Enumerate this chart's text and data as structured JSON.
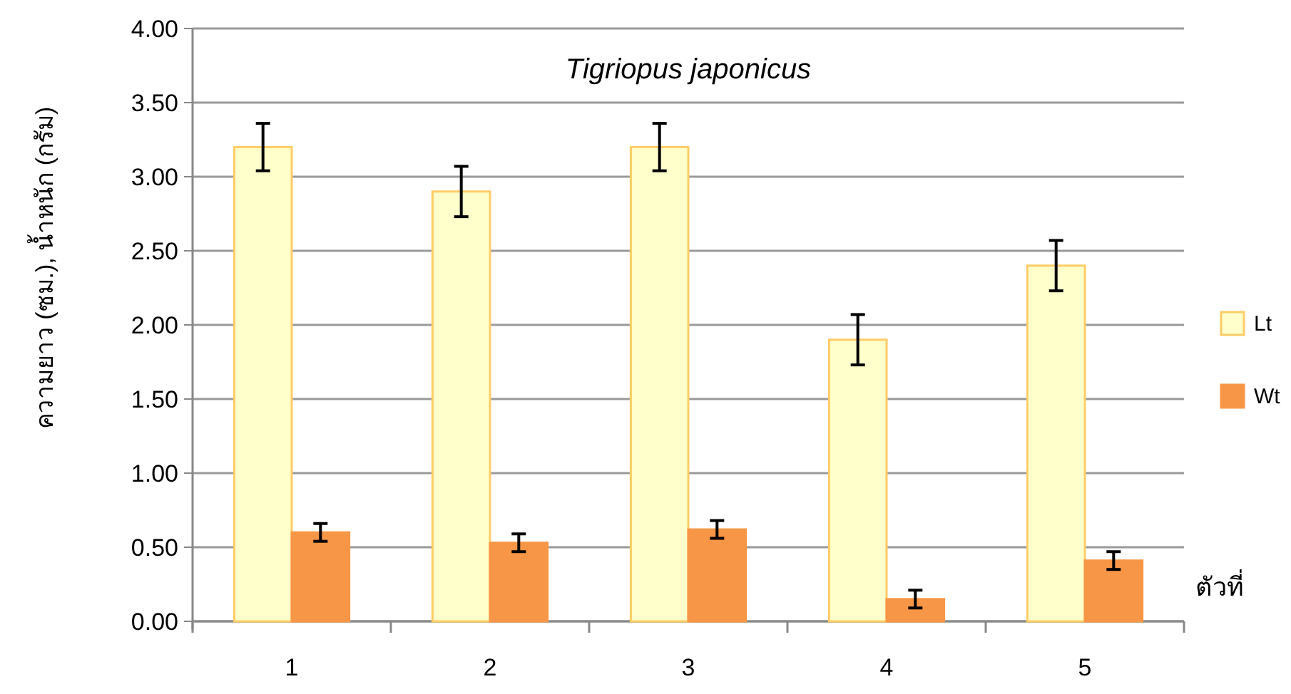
{
  "chart_data": {
    "type": "bar",
    "title": "Tigriopus japonicus",
    "ylabel": "ความยาว (ซม.), น้ำหนัก (กรัม)",
    "xlabel": "ตัวที่",
    "categories": [
      "1",
      "2",
      "3",
      "4",
      "5"
    ],
    "series": [
      {
        "name": "Lt",
        "color": "#ffffcc",
        "values": [
          3.2,
          2.9,
          3.2,
          1.9,
          2.4
        ],
        "errors": [
          0.16,
          0.17,
          0.16,
          0.17,
          0.17
        ]
      },
      {
        "name": "Wt",
        "color": "#f79646",
        "values": [
          0.6,
          0.53,
          0.62,
          0.15,
          0.41
        ],
        "errors": [
          0.06,
          0.06,
          0.06,
          0.06,
          0.06
        ]
      }
    ],
    "ylim": [
      0,
      4
    ],
    "yticks": [
      {
        "value": 0,
        "label": "0.00"
      },
      {
        "value": 0.5,
        "label": "0.50"
      },
      {
        "value": 1,
        "label": "1.00"
      },
      {
        "value": 1.5,
        "label": "1.50"
      },
      {
        "value": 2,
        "label": "2.00"
      },
      {
        "value": 2.5,
        "label": "2.50"
      },
      {
        "value": 3,
        "label": "3.00"
      },
      {
        "value": 3.5,
        "label": "3.50"
      },
      {
        "value": 4,
        "label": "4.00"
      }
    ],
    "grid": "y",
    "legend": "right"
  }
}
